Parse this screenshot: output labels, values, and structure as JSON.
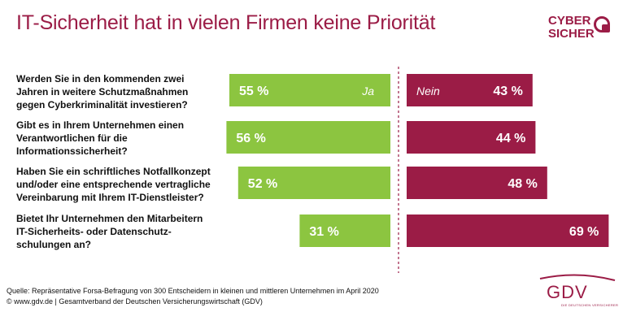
{
  "title": "IT-Sicherheit hat in vielen Firmen keine Priorität",
  "logo": {
    "line1": "CYBER",
    "line2": "SICHER"
  },
  "chart_data": {
    "type": "bar",
    "orientation": "horizontal-diverging",
    "categories": [
      "Werden Sie in den kommenden zwei Jahren in weitere Schutzmaßnahmen gegen Cyberkriminalität investieren?",
      "Gibt es in Ihrem Unternehmen einen Verantwortlichen für die Informationssicherheit?",
      "Haben Sie ein schriftliches Notfallkonzept und/oder eine entsprechende vertragliche Vereinbarung mit Ihrem IT-Dienstleister?",
      "Bietet Ihr Unternehmen den Mitarbeitern IT-Sicherheits- oder Datenschutz-schulungen an?"
    ],
    "question_lines": [
      [
        "Werden Sie in den kommenden zwei",
        "Jahren in weitere Schutzmaßnahmen",
        "gegen Cyberkriminalität investieren?"
      ],
      [
        "Gibt es in Ihrem Unternehmen einen",
        "Verantwortlichen für die",
        "Informationssicherheit?"
      ],
      [
        "Haben Sie ein schriftliches Notfallkonzept",
        "und/oder eine entsprechende vertragliche",
        "Vereinbarung mit Ihrem IT-Dienstleister?"
      ],
      [
        "Bietet Ihr Unternehmen den Mitarbeitern",
        "IT-Sicherheits- oder Datenschutz-",
        "schulungen an?"
      ]
    ],
    "series": [
      {
        "name": "Ja",
        "color": "#8cc540",
        "values": [
          55,
          56,
          52,
          31
        ],
        "labels": [
          "55 %",
          "56 %",
          "52 %",
          "31 %"
        ]
      },
      {
        "name": "Nein",
        "color": "#9b1c46",
        "values": [
          43,
          44,
          48,
          69
        ],
        "labels": [
          "43 %",
          "44 %",
          "48 %",
          "69 %"
        ]
      }
    ],
    "unit": "%",
    "xlim": [
      0,
      100
    ]
  },
  "source": {
    "line1": "Quelle: Repräsentative Forsa-Befragung von 300 Entscheidern in kleinen und mittleren Unternehmen im April 2020",
    "line2": "© www.gdv.de | Gesamtverband der Deutschen Versicherungswirtschaft (GDV)"
  },
  "gdv_logo": {
    "word": "GDV",
    "sub": "DIE DEUTSCHEN VERSICHERER"
  }
}
